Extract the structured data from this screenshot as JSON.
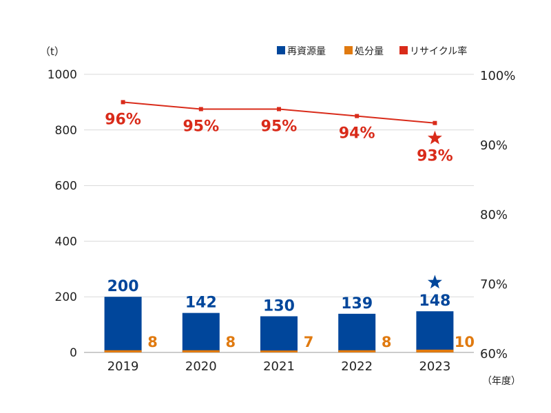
{
  "chart_data": {
    "type": "bar",
    "y_unit_label": "（t）",
    "x_unit_label": "（年度）",
    "categories": [
      "2019",
      "2020",
      "2021",
      "2022",
      "2023"
    ],
    "ylim": [
      0,
      1000
    ],
    "y_ticks": [
      0,
      200,
      400,
      600,
      800,
      1000
    ],
    "y2lim": [
      60,
      100
    ],
    "y2_ticks": [
      "60%",
      "70%",
      "80%",
      "90%",
      "100%"
    ],
    "grid": true,
    "legend_position": "top-right",
    "series": [
      {
        "name": "再資源量",
        "type": "bar",
        "color": "#00469b",
        "values": [
          200,
          142,
          130,
          139,
          148
        ],
        "labels": [
          "200",
          "142",
          "130",
          "139",
          "148"
        ]
      },
      {
        "name": "処分量",
        "type": "bar",
        "color": "#e07a10",
        "values": [
          8,
          8,
          7,
          8,
          10
        ],
        "labels": [
          "8",
          "8",
          "7",
          "8",
          "10"
        ]
      },
      {
        "name": "リサイクル率",
        "type": "line",
        "axis": "right",
        "color": "#d92b1a",
        "values": [
          96,
          95,
          95,
          94,
          93
        ],
        "labels": [
          "96%",
          "95%",
          "95%",
          "94%",
          "93%"
        ]
      }
    ],
    "highlight_category": "2023",
    "highlight_marker": "star"
  }
}
